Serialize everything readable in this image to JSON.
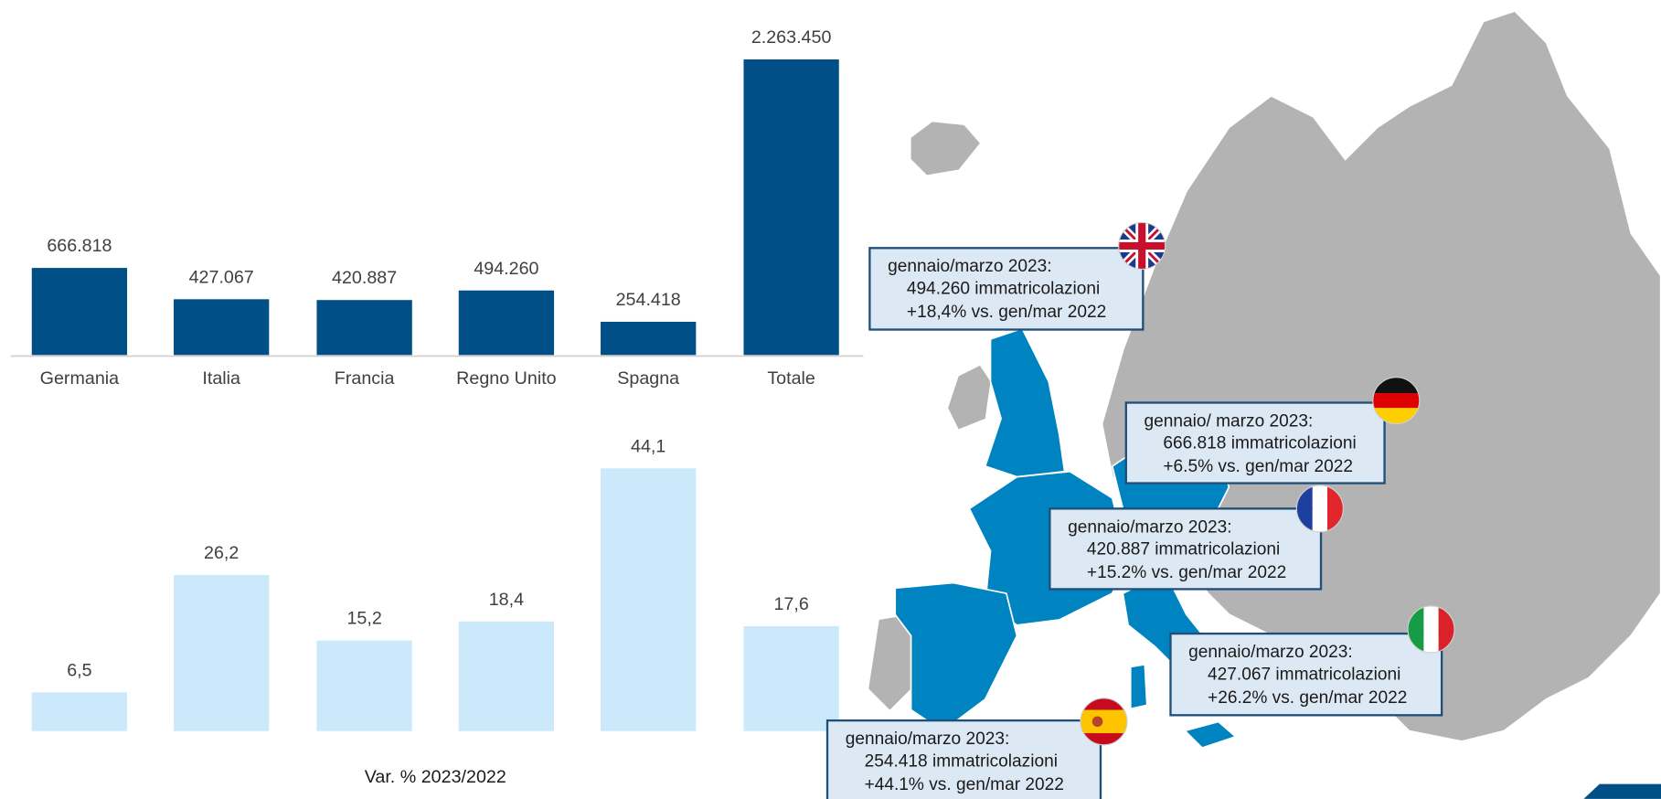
{
  "chart_data": [
    {
      "type": "bar",
      "categories": [
        "Germania",
        "Italia",
        "Francia",
        "Regno Unito",
        "Spagna",
        "Totale"
      ],
      "values": [
        666818,
        427067,
        420887,
        494260,
        254418,
        2263450
      ],
      "value_labels": [
        "666.818",
        "427.067",
        "420.887",
        "494.260",
        "254.418",
        "2.263.450"
      ],
      "color": "#004f86"
    },
    {
      "type": "bar",
      "values": [
        6.5,
        26.2,
        15.2,
        18.4,
        44.1,
        17.6
      ],
      "value_labels": [
        "6,5",
        "26,2",
        "15,2",
        "18,4",
        "44,1",
        "17,6"
      ],
      "color": "#cce9fb",
      "x_label": "Var. %  2023/2022"
    }
  ],
  "map": {
    "callouts": [
      {
        "line1": "gennaio/marzo 2023:",
        "line2": "494.260 immatricolazioni",
        "line3": "+18,4% vs. gen/mar 2022"
      },
      {
        "line1": "gennaio/ marzo 2023:",
        "line2": "666.818 immatricolazioni",
        "line3": "+6.5% vs. gen/mar 2022"
      },
      {
        "line1": "gennaio/marzo 2023:",
        "line2": "420.887 immatricolazioni",
        "line3": "+15.2% vs. gen/mar 2022"
      },
      {
        "line1": "gennaio/marzo 2023:",
        "line2": "427.067 immatricolazioni",
        "line3": "+26.2% vs. gen/mar 2022"
      },
      {
        "line1": "gennaio/marzo 2023:",
        "line2": "254.418 immatricolazioni",
        "line3": "+44.1% vs. gen/mar 2022"
      }
    ]
  }
}
